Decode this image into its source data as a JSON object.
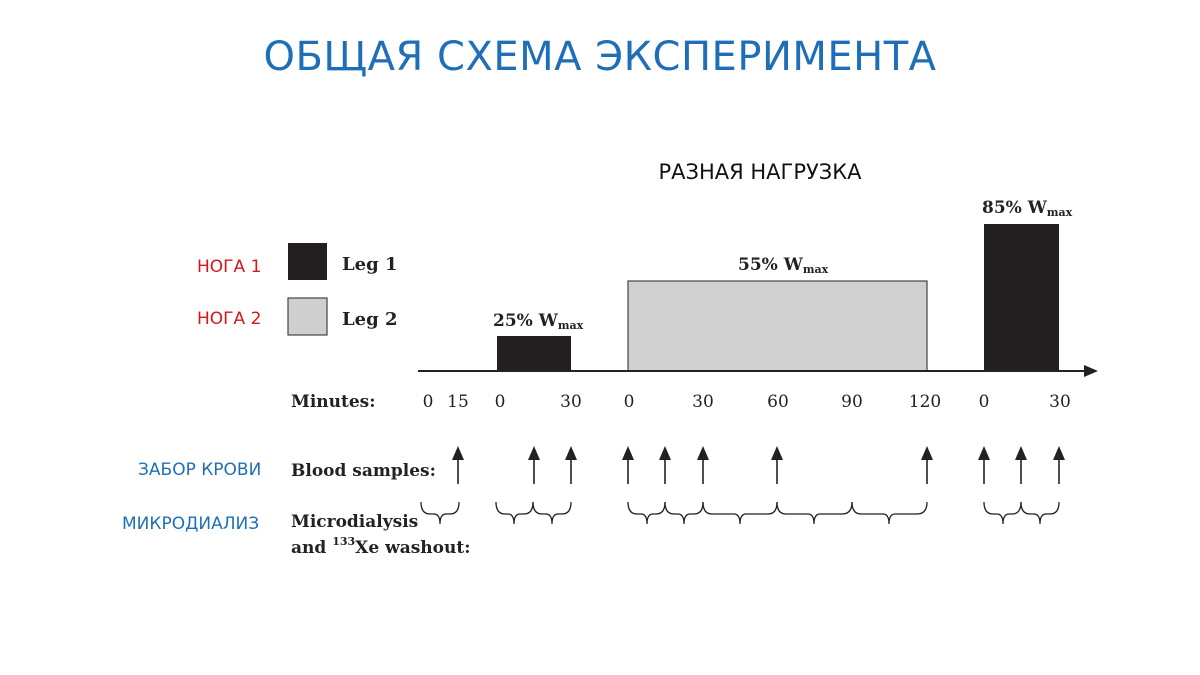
{
  "title": "ОБЩАЯ СХЕМА ЭКСПЕРИМЕНТА",
  "subtitle": "РАЗНАЯ НАГРУЗКА",
  "side_labels": {
    "leg1": "НОГА 1",
    "leg2": "НОГА 2",
    "blood": "ЗАБОР КРОВИ",
    "microdialysis": "МИКРОДИАЛИЗ"
  },
  "legend": {
    "leg1": "Leg 1",
    "leg2": "Leg 2",
    "leg1_color": "#231f20",
    "leg2_color": "#cfcfcf"
  },
  "loads": {
    "load1": {
      "pct": "25% W",
      "sub": "max"
    },
    "load2": {
      "pct": "55% W",
      "sub": "max"
    },
    "load3": {
      "pct": "85% W",
      "sub": "max"
    }
  },
  "rows": {
    "minutes": "Minutes:",
    "blood": "Blood samples:",
    "micro_line1": "Microdialysis",
    "micro_line2_a": "and ",
    "micro_line2_sup": "133",
    "micro_line2_b": "Xe washout:"
  },
  "ticks": {
    "t1": "0",
    "t2": "15",
    "t3": "0",
    "t4": "30",
    "t5": "0",
    "t6": "30",
    "t7": "60",
    "t8": "90",
    "t9": "120",
    "t10": "0",
    "t11": "30"
  },
  "colors": {
    "title": "#1f6fb8",
    "red_label": "#d9141b",
    "blue_label": "#1f6fb8"
  }
}
